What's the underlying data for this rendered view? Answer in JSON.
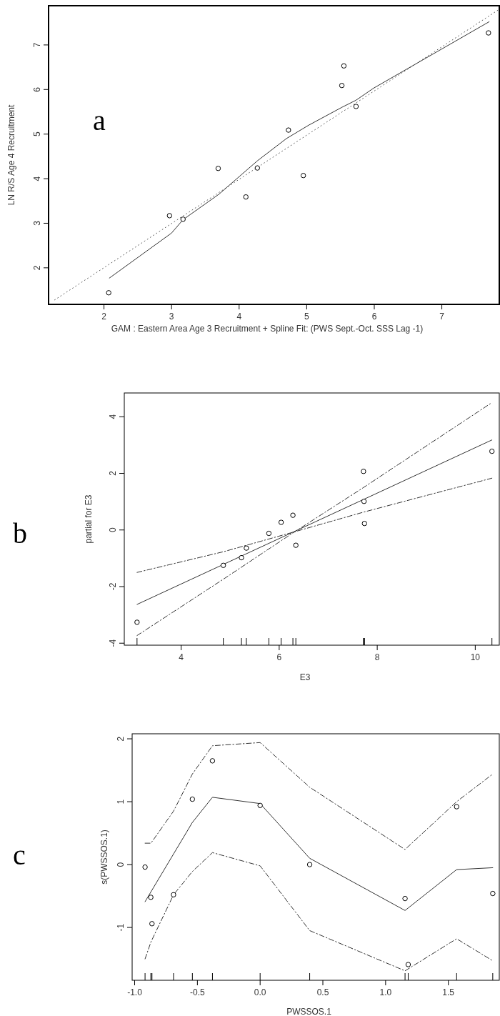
{
  "chart_data": [
    {
      "type": "scatter",
      "xlabel": "GAM : Eastern Area Age 3 Recruitment + Spline Fit: (PWS Sept.-Oct. SSS Lag -1)",
      "ylabel": "LN R/S Age 4 Recruitment",
      "annotations": [
        "a"
      ],
      "xlim": [
        1.18,
        7.85
      ],
      "ylim": [
        1.18,
        7.88
      ],
      "xticks": [
        2,
        3,
        4,
        5,
        6,
        7
      ],
      "yticks": [
        2,
        3,
        4,
        5,
        6,
        7
      ],
      "series": [
        {
          "marker": "circle",
          "color": "#000000",
          "x": [
            2.07,
            2.97,
            3.17,
            3.69,
            4.1,
            4.27,
            4.73,
            4.95,
            5.52,
            5.55,
            5.73,
            7.69
          ],
          "values": [
            1.44,
            3.17,
            3.09,
            4.23,
            3.59,
            4.24,
            5.09,
            4.07,
            6.09,
            6.53,
            5.62,
            7.27
          ]
        },
        {
          "type": "line",
          "line_style": "solid",
          "color": "#333333",
          "x": [
            2.08,
            3.0,
            3.17,
            3.7,
            4.27,
            4.7,
            5.03,
            5.52,
            5.73,
            5.99,
            7.7
          ],
          "values": [
            1.77,
            2.78,
            3.08,
            3.65,
            4.4,
            4.9,
            5.2,
            5.6,
            5.76,
            6.03,
            7.52
          ]
        },
        {
          "type": "line",
          "line_style": "dotted",
          "color": "#555555",
          "x": [
            1.27,
            7.85
          ],
          "values": [
            1.28,
            7.8
          ]
        }
      ]
    },
    {
      "type": "scatter",
      "xlabel": "E3",
      "ylabel": "partial for E3",
      "annotations": [
        "b"
      ],
      "xlim": [
        2.84,
        10.49
      ],
      "ylim": [
        -4.07,
        4.84
      ],
      "xticks": [
        4,
        6,
        8,
        10
      ],
      "yticks": [
        -4,
        -2,
        0,
        2,
        4
      ],
      "series": [
        {
          "marker": "circle",
          "color": "#000000",
          "x": [
            3.1,
            4.86,
            5.23,
            5.33,
            5.79,
            6.04,
            6.28,
            6.34,
            7.72,
            7.73,
            7.74,
            10.34
          ],
          "values": [
            -3.26,
            -1.25,
            -0.98,
            -0.64,
            -0.12,
            0.27,
            0.52,
            -0.54,
            2.07,
            1.01,
            0.23,
            2.78
          ]
        },
        {
          "type": "line",
          "line_style": "solid",
          "color": "#333333",
          "x": [
            3.1,
            10.34
          ],
          "values": [
            -2.63,
            3.18
          ]
        },
        {
          "type": "line",
          "line_style": "dashed",
          "color": "#333333",
          "x": [
            3.1,
            4.86,
            6.24,
            7.72,
            10.34
          ],
          "values": [
            -3.73,
            -1.74,
            -0.15,
            1.5,
            4.5
          ]
        },
        {
          "type": "line",
          "line_style": "dashed",
          "color": "#333333",
          "x": [
            3.1,
            4.86,
            6.24,
            7.72,
            10.34
          ],
          "values": [
            -1.5,
            -0.77,
            -0.1,
            0.63,
            1.83
          ]
        }
      ]
    },
    {
      "type": "scatter",
      "xlabel": "PWSSOS.1",
      "ylabel": "s(PWSSOS.1)",
      "annotations": [
        "c"
      ],
      "xlim": [
        -1.02,
        1.906
      ],
      "ylim": [
        -1.84,
        2.08
      ],
      "xticks": [
        {
          "value": -1,
          "label": "-1.0"
        },
        {
          "value": -0.5,
          "label": "-0.5"
        },
        {
          "value": 0,
          "label": "0.0"
        },
        {
          "value": 0.5,
          "label": "0.5"
        },
        {
          "value": 1,
          "label": "1.0"
        },
        {
          "value": 1.5,
          "label": "1.5"
        }
      ],
      "yticks": [
        -1,
        0,
        1,
        2
      ],
      "series": [
        {
          "marker": "circle",
          "color": "#000000",
          "x": [
            -0.917,
            -0.871,
            -0.862,
            -0.69,
            -0.54,
            -0.38,
            0.0,
            0.395,
            1.155,
            1.18,
            1.566,
            1.854
          ],
          "values": [
            -0.04,
            -0.52,
            -0.94,
            -0.48,
            1.04,
            1.65,
            0.94,
            0.0,
            -0.54,
            -1.59,
            0.92,
            -0.46
          ]
        },
        {
          "type": "line",
          "line_style": "solid",
          "color": "#333333",
          "x": [
            -0.917,
            -0.54,
            -0.38,
            0.0,
            0.395,
            1.155,
            1.566,
            1.854
          ],
          "values": [
            -0.59,
            0.67,
            1.07,
            0.97,
            0.1,
            -0.73,
            -0.08,
            -0.05
          ]
        },
        {
          "type": "line",
          "line_style": "dashed",
          "color": "#333333",
          "x": [
            -0.917,
            -0.87,
            -0.69,
            -0.54,
            -0.38,
            0.0,
            0.395,
            1.155,
            1.566,
            1.854
          ],
          "values": [
            0.34,
            0.34,
            0.85,
            1.44,
            1.89,
            1.94,
            1.23,
            0.24,
            1.0,
            1.44
          ]
        },
        {
          "type": "line",
          "line_style": "dashed",
          "color": "#333333",
          "x": [
            -0.917,
            -0.87,
            -0.69,
            -0.54,
            -0.38,
            0.0,
            0.395,
            1.155,
            1.566,
            1.854
          ],
          "values": [
            -1.5,
            -1.23,
            -0.48,
            -0.11,
            0.19,
            -0.02,
            -1.05,
            -1.69,
            -1.18,
            -1.53
          ]
        }
      ]
    }
  ]
}
